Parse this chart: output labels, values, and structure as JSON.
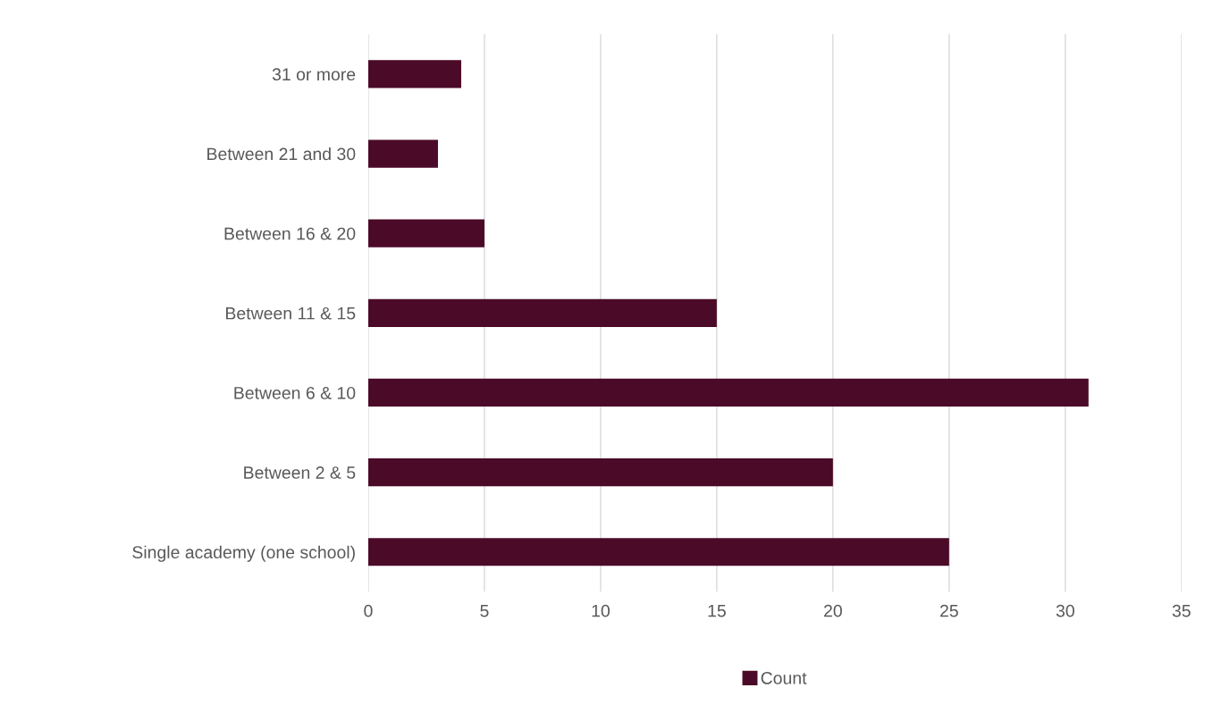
{
  "chart_data": {
    "type": "bar",
    "orientation": "horizontal",
    "categories": [
      "31 or more",
      "Between 21 and 30",
      "Between 16 & 20",
      "Between 11 & 15",
      "Between 6 & 10",
      "Between 2 & 5",
      "Single academy (one school)"
    ],
    "series": [
      {
        "name": "Count",
        "color": "#4b0a27",
        "values": [
          4,
          3,
          5,
          15,
          31,
          20,
          25
        ]
      }
    ],
    "xlim": [
      0,
      35
    ],
    "xticks": [
      0,
      5,
      10,
      15,
      20,
      25,
      30,
      35
    ],
    "grid": "x",
    "legend": "bottom"
  }
}
